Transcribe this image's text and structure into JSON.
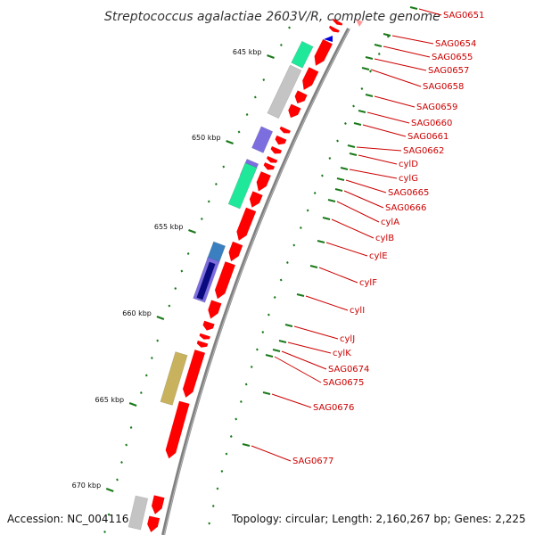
{
  "header": {
    "title": "Streptococcus agalactiae 2603V/R, complete genome"
  },
  "footer": {
    "accession": "Accession: NC_004116",
    "topology": "Topology: circular; Length: 2,160,267 bp; Genes: 2,225"
  },
  "ruler": {
    "labels": [
      "645 kbp",
      "650 kbp",
      "655 kbp",
      "660 kbp",
      "665 kbp",
      "670 kbp"
    ]
  },
  "genes": [
    {
      "name": "SAG0651"
    },
    {
      "name": "SAG0654"
    },
    {
      "name": "SAG0655"
    },
    {
      "name": "SAG0657"
    },
    {
      "name": "SAG0658"
    },
    {
      "name": "SAG0659"
    },
    {
      "name": "SAG0660"
    },
    {
      "name": "SAG0661"
    },
    {
      "name": "SAG0662"
    },
    {
      "name": "cylD"
    },
    {
      "name": "cylG"
    },
    {
      "name": "SAG0665"
    },
    {
      "name": "SAG0666"
    },
    {
      "name": "cylA"
    },
    {
      "name": "cylB"
    },
    {
      "name": "cylE"
    },
    {
      "name": "cylF"
    },
    {
      "name": "cylI"
    },
    {
      "name": "cylJ"
    },
    {
      "name": "cylK"
    },
    {
      "name": "SAG0674"
    },
    {
      "name": "SAG0675"
    },
    {
      "name": "SAG0676"
    },
    {
      "name": "SAG0677"
    }
  ],
  "colors": {
    "cds": "#ff0000",
    "backbone": "#808080",
    "ticks": "#1a7a1a",
    "labels": "#cc0000",
    "label_lines": "#cc0000",
    "cog_green": "#20e89a",
    "cog_gray": "#c4c4c4",
    "cog_purple": "#7d6ee0",
    "cog_blue": "#3a7fc0",
    "cog_navy": "#0a0a80",
    "cog_olive": "#c8b25e",
    "marker_blue": "#0000dd"
  }
}
